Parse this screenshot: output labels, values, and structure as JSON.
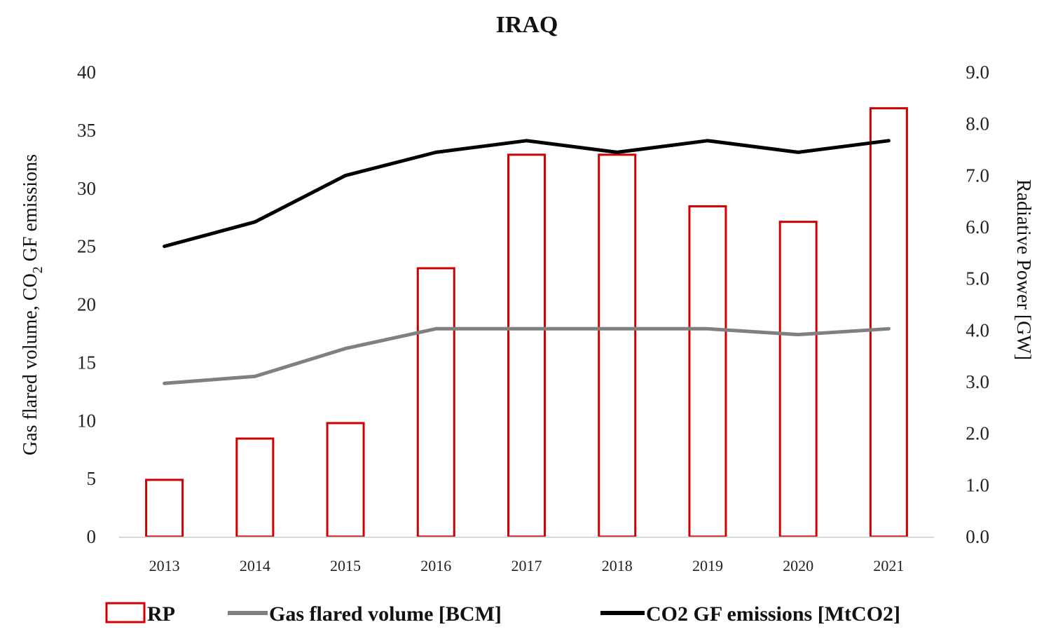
{
  "chart_data": {
    "type": "bar",
    "title": "IRAQ",
    "categories": [
      "2013",
      "2014",
      "2015",
      "2016",
      "2017",
      "2018",
      "2019",
      "2020",
      "2021"
    ],
    "xlabel": "",
    "ylabel_left": {
      "pre": "Gas flared volume, CO",
      "sub": "2",
      "post": " GF emissions"
    },
    "ylabel_right": "Radiative Power [GW]",
    "ylim_left": [
      0,
      40
    ],
    "ylim_right": [
      0,
      9
    ],
    "yticks_left": [
      "0",
      "5",
      "10",
      "15",
      "20",
      "25",
      "30",
      "35",
      "40"
    ],
    "yticks_right": [
      "0.0",
      "1.0",
      "2.0",
      "3.0",
      "4.0",
      "5.0",
      "6.0",
      "7.0",
      "8.0",
      "9.0"
    ],
    "grid": false,
    "legend_position": "bottom",
    "series": [
      {
        "name": "RP",
        "type": "bar",
        "axis": "right",
        "color": "#d00000",
        "values": [
          1.1,
          1.9,
          2.2,
          5.2,
          7.4,
          7.4,
          6.4,
          6.1,
          8.3
        ]
      },
      {
        "name": "Gas flared volume [BCM]",
        "type": "line",
        "axis": "left",
        "color": "#808080",
        "values": [
          13.2,
          13.8,
          16.2,
          17.9,
          17.9,
          17.9,
          17.9,
          17.4,
          17.9
        ]
      },
      {
        "name": "CO2 GF emissions [MtCO2]",
        "type": "line",
        "axis": "left",
        "color": "#000000",
        "values": [
          25.0,
          27.1,
          31.1,
          33.1,
          34.1,
          33.1,
          34.1,
          33.1,
          34.1
        ]
      }
    ]
  }
}
